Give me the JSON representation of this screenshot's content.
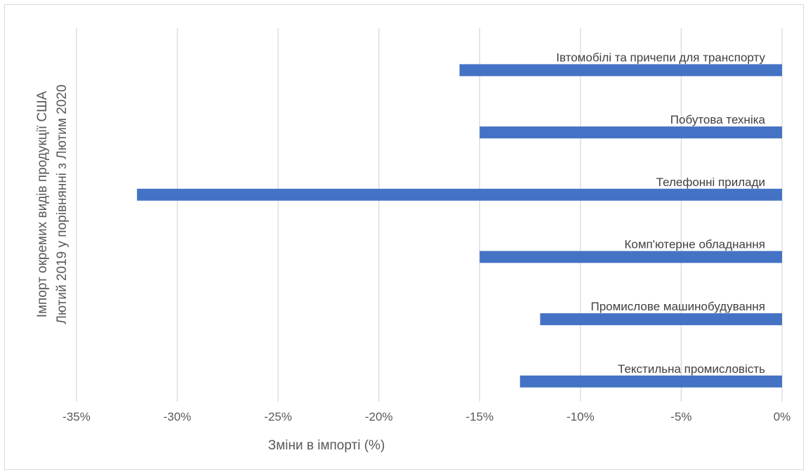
{
  "chart_data": {
    "type": "bar",
    "orientation": "horizontal",
    "categories": [
      "Івтомобілі та причепи для транспорту",
      "Побутова техніка",
      "Телефонні прилади",
      "Комп'ютерне обладнання",
      "Промислове машинобудування",
      "Текстильна промисловість"
    ],
    "values": [
      -16,
      -15,
      -32,
      -15,
      -12,
      -13
    ],
    "xlabel": "Зміни в імпорті (%)",
    "ylabel_lines": [
      "Імпорт окремих видів продукції США",
      "Лютий 2019 у порівнянні з Лютим 2020"
    ],
    "xlim": [
      -35,
      0
    ],
    "xticks": [
      -35,
      -30,
      -25,
      -20,
      -15,
      -10,
      -5,
      0
    ],
    "xtick_labels": [
      "-35%",
      "-30%",
      "-25%",
      "-20%",
      "-15%",
      "-10%",
      "-5%",
      "0%"
    ],
    "grid": true,
    "bar_color": "#4472C4",
    "grid_color": "#d9d9d9"
  }
}
